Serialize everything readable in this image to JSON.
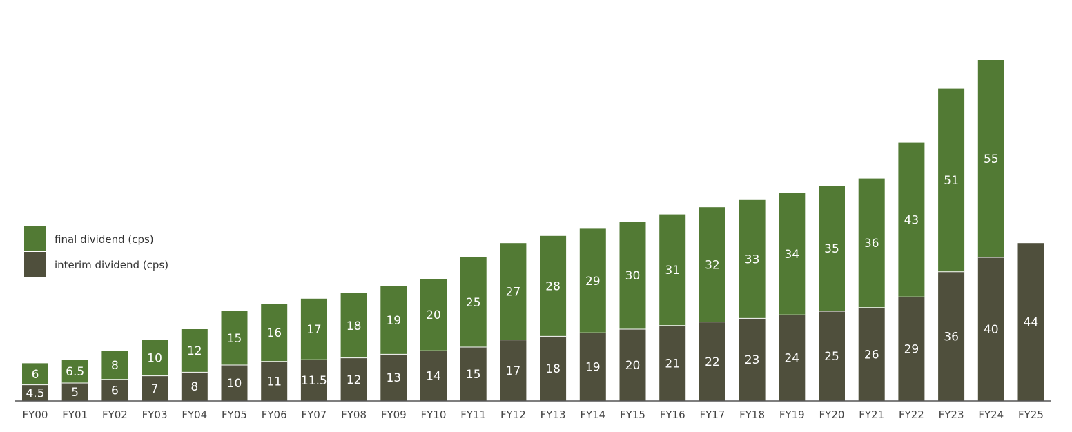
{
  "chart_data": {
    "type": "bar",
    "stacked": true,
    "categories": [
      "FY00",
      "FY01",
      "FY02",
      "FY03",
      "FY04",
      "FY05",
      "FY06",
      "FY07",
      "FY08",
      "FY09",
      "FY10",
      "FY11",
      "FY12",
      "FY13",
      "FY14",
      "FY15",
      "FY16",
      "FY17",
      "FY18",
      "FY19",
      "FY20",
      "FY21",
      "FY22",
      "FY23",
      "FY24",
      "FY25"
    ],
    "series": [
      {
        "name": "interim dividend (cps)",
        "color": "#4f4f3c",
        "values": [
          4.5,
          5,
          6,
          7,
          8,
          10,
          11,
          11.5,
          12,
          13,
          14,
          15,
          17,
          18,
          19,
          20,
          21,
          22,
          23,
          24,
          25,
          26,
          29,
          36,
          40,
          44
        ],
        "labels": [
          "4.5",
          "5",
          "6",
          "7",
          "8",
          "10",
          "11",
          "11.5",
          "12",
          "13",
          "14",
          "15",
          "17",
          "18",
          "19",
          "20",
          "21",
          "22",
          "23",
          "24",
          "25",
          "26",
          "29",
          "36",
          "40",
          "44"
        ]
      },
      {
        "name": "final dividend (cps)",
        "color": "#527a34",
        "values": [
          6,
          6.5,
          8,
          10,
          12,
          15,
          16,
          17,
          18,
          19,
          20,
          25,
          27,
          28,
          29,
          30,
          31,
          32,
          33,
          34,
          35,
          36,
          43,
          51,
          55,
          null
        ],
        "labels": [
          "6",
          "6.5",
          "8",
          "10",
          "12",
          "15",
          "16",
          "17",
          "18",
          "19",
          "20",
          "25",
          "27",
          "28",
          "29",
          "30",
          "31",
          "32",
          "33",
          "34",
          "35",
          "36",
          "43",
          "51",
          "55",
          ""
        ]
      }
    ],
    "ylim": [
      0,
      100
    ],
    "legend": "left-middle",
    "grid": false,
    "title": "",
    "xlabel": "",
    "ylabel": ""
  },
  "legend": {
    "final_label": "final dividend (cps)",
    "interim_label": "interim dividend (cps)"
  }
}
